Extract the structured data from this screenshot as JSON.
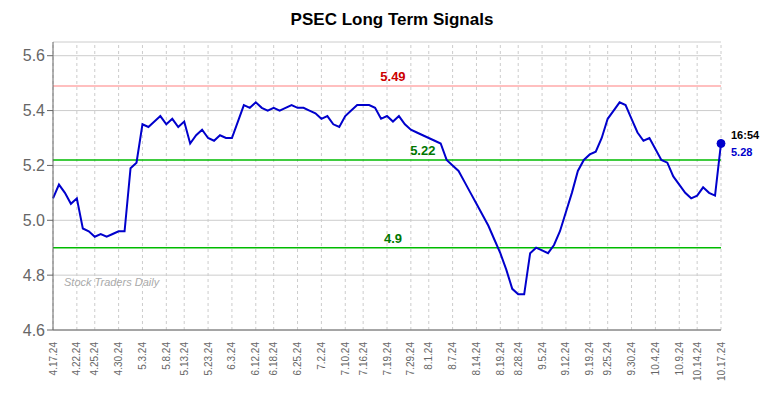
{
  "chart_data": {
    "type": "line",
    "title": "PSEC Long Term Signals",
    "categories": [
      "4.17.24",
      null,
      null,
      null,
      "4.22.24",
      null,
      null,
      "4.25.24",
      null,
      null,
      null,
      "4.30.24",
      null,
      null,
      null,
      "5.3.24",
      null,
      null,
      null,
      "5.8.24",
      null,
      null,
      "5.13.24",
      null,
      null,
      null,
      "5.23.24",
      null,
      null,
      null,
      "6.3.24",
      null,
      null,
      null,
      "6.12.24",
      null,
      null,
      "6.18.24",
      null,
      null,
      null,
      "6.25.24",
      null,
      null,
      null,
      "7.2.24",
      null,
      null,
      null,
      "7.10.24",
      null,
      null,
      "7.16.24",
      null,
      null,
      null,
      "7.19.24",
      null,
      null,
      null,
      "7.29.24",
      null,
      null,
      "8.1.24",
      null,
      null,
      null,
      "8.7.24",
      null,
      null,
      null,
      "8.14.24",
      null,
      null,
      null,
      "8.19.24",
      null,
      null,
      "8.28.24",
      null,
      null,
      null,
      "9.5.24",
      null,
      null,
      null,
      "9.12.24",
      null,
      null,
      null,
      "9.19.24",
      null,
      null,
      "9.25.24",
      null,
      null,
      null,
      "9.30.24",
      null,
      null,
      null,
      "10.4.24",
      null,
      null,
      null,
      "10.9.24",
      null,
      null,
      "10.14.24",
      null,
      null,
      null,
      "10.17.24"
    ],
    "values": [
      5.08,
      5.13,
      5.1,
      5.06,
      5.08,
      4.97,
      4.96,
      4.94,
      4.95,
      4.94,
      4.95,
      4.96,
      4.96,
      5.19,
      5.21,
      5.35,
      5.34,
      5.36,
      5.38,
      5.35,
      5.37,
      5.34,
      5.36,
      5.28,
      5.31,
      5.33,
      5.3,
      5.29,
      5.31,
      5.3,
      5.3,
      5.36,
      5.42,
      5.41,
      5.43,
      5.41,
      5.4,
      5.41,
      5.4,
      5.41,
      5.42,
      5.41,
      5.41,
      5.4,
      5.39,
      5.37,
      5.38,
      5.35,
      5.34,
      5.38,
      5.4,
      5.42,
      5.42,
      5.42,
      5.41,
      5.37,
      5.38,
      5.36,
      5.38,
      5.35,
      5.33,
      5.32,
      5.31,
      5.3,
      5.29,
      5.28,
      5.22,
      5.2,
      5.18,
      5.14,
      5.1,
      5.06,
      5.02,
      4.98,
      4.93,
      4.88,
      4.82,
      4.75,
      4.73,
      4.73,
      4.88,
      4.9,
      4.89,
      4.88,
      4.91,
      4.96,
      5.03,
      5.1,
      5.18,
      5.22,
      5.24,
      5.25,
      5.3,
      5.37,
      5.4,
      5.43,
      5.42,
      5.37,
      5.32,
      5.29,
      5.3,
      5.26,
      5.22,
      5.21,
      5.16,
      5.13,
      5.1,
      5.08,
      5.09,
      5.12,
      5.1,
      5.09,
      5.28
    ],
    "color": "#0000cc",
    "ylim": [
      4.6,
      5.65
    ],
    "yticks": [
      4.6,
      4.8,
      {
        "value": 5.0,
        "label": "5.0"
      },
      5.2,
      5.4,
      5.6
    ],
    "grid": true,
    "reference_lines": [
      {
        "value": 5.49,
        "color": "#ffaaaa",
        "label": "5.49",
        "label_color": "#cc0000",
        "label_x": 57
      },
      {
        "value": 5.22,
        "color": "#00bb00",
        "label": "5.22",
        "label_color": "#007700",
        "label_x": 62
      },
      {
        "value": 4.9,
        "color": "#00bb00",
        "label": "4.9",
        "label_color": "#007700",
        "label_x": 57
      }
    ],
    "last_point_labels": [
      {
        "text": "16:54",
        "color": "#000000"
      },
      {
        "text": "5.28",
        "color": "#0000cc"
      }
    ],
    "watermark": {
      "text": "Stock Traders Daily",
      "color": "#aaaaaa"
    }
  }
}
